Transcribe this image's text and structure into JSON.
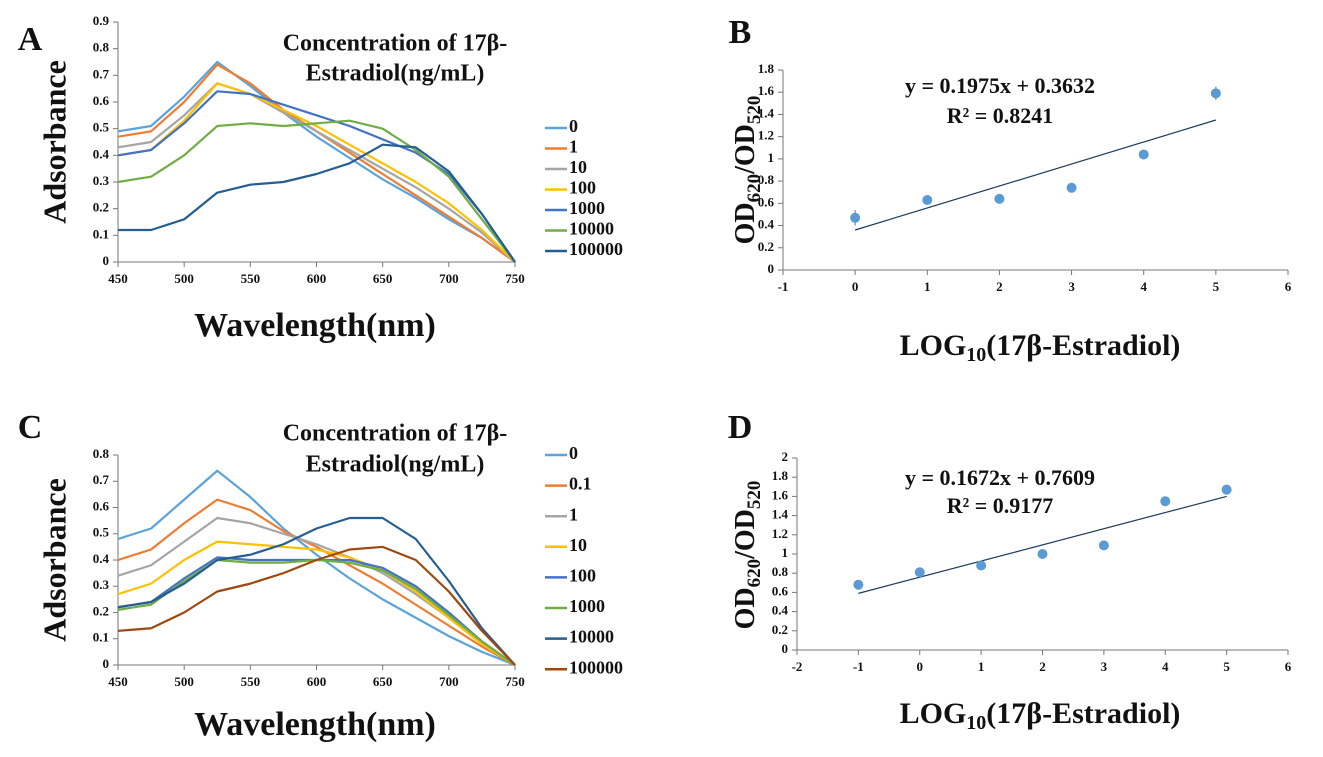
{
  "chart_data": [
    {
      "type": "line",
      "panel_label": "A",
      "legend_title": [
        "Concentration of  17β-",
        "Estradiol(ng/mL)"
      ],
      "xlabel": "Wavelength(nm)",
      "ylabel": "Adsorbance",
      "x": [
        450,
        475,
        500,
        525,
        550,
        575,
        600,
        625,
        650,
        675,
        700,
        725,
        750
      ],
      "xlim": [
        450,
        750
      ],
      "xticks": [
        450,
        500,
        550,
        600,
        650,
        700,
        750
      ],
      "ylim": [
        0,
        0.9
      ],
      "yticks": [
        0,
        0.1,
        0.2,
        0.3,
        0.4,
        0.5,
        0.6,
        0.7,
        0.8,
        0.9
      ],
      "series": [
        {
          "name": "0",
          "color": "#5ba3dc",
          "values": [
            0.49,
            0.51,
            0.62,
            0.75,
            0.66,
            0.56,
            0.47,
            0.39,
            0.31,
            0.24,
            0.16,
            0.09,
            0
          ]
        },
        {
          "name": "1",
          "color": "#ed7d31",
          "values": [
            0.47,
            0.49,
            0.6,
            0.74,
            0.67,
            0.57,
            0.49,
            0.41,
            0.33,
            0.25,
            0.17,
            0.09,
            0
          ]
        },
        {
          "name": "10",
          "color": "#a5a5a5",
          "values": [
            0.43,
            0.45,
            0.55,
            0.67,
            0.63,
            0.56,
            0.49,
            0.42,
            0.35,
            0.28,
            0.2,
            0.11,
            0
          ]
        },
        {
          "name": "100",
          "color": "#ffc000",
          "values": [
            0.4,
            0.42,
            0.53,
            0.67,
            0.63,
            0.57,
            0.51,
            0.44,
            0.37,
            0.3,
            0.22,
            0.12,
            0
          ]
        },
        {
          "name": "1000",
          "color": "#4472c4",
          "values": [
            0.4,
            0.42,
            0.52,
            0.64,
            0.63,
            0.59,
            0.55,
            0.51,
            0.46,
            0.41,
            0.33,
            0.18,
            0
          ]
        },
        {
          "name": "10000",
          "color": "#70ad47",
          "values": [
            0.3,
            0.32,
            0.4,
            0.51,
            0.52,
            0.51,
            0.52,
            0.53,
            0.5,
            0.42,
            0.32,
            0.16,
            0
          ]
        },
        {
          "name": "100000",
          "color": "#255e91",
          "values": [
            0.12,
            0.12,
            0.16,
            0.26,
            0.29,
            0.3,
            0.33,
            0.37,
            0.44,
            0.43,
            0.34,
            0.18,
            0
          ]
        }
      ]
    },
    {
      "type": "scatter",
      "panel_label": "B",
      "equation": [
        "y = 0.1975x + 0.3632",
        "R² = 0.8241"
      ],
      "xlabel_parts": [
        "LOG",
        "10",
        "(17β-Estradiol)"
      ],
      "ylabel_parts": [
        "OD",
        "620",
        "/OD",
        "520"
      ],
      "x": [
        0,
        1,
        2,
        3,
        4,
        5
      ],
      "values": [
        0.47,
        0.63,
        0.64,
        0.74,
        1.04,
        1.59
      ],
      "errors": [
        0.07,
        0.04,
        0.03,
        0.04,
        0.03,
        0.06
      ],
      "color": "#5b9bd5",
      "trendline": {
        "x": [
          0,
          5
        ],
        "values": [
          0.36,
          1.35
        ]
      },
      "xlim": [
        -1,
        6
      ],
      "xticks": [
        -1,
        0,
        1,
        2,
        3,
        4,
        5,
        6
      ],
      "ylim": [
        0,
        1.8
      ],
      "yticks": [
        0,
        0.2,
        0.4,
        0.6,
        0.8,
        1,
        1.2,
        1.4,
        1.6,
        1.8
      ]
    },
    {
      "type": "line",
      "panel_label": "C",
      "legend_title": [
        "Concentration of  17β-",
        "Estradiol(ng/mL)"
      ],
      "xlabel": "Wavelength(nm)",
      "ylabel": "Adsorbance",
      "x": [
        450,
        475,
        500,
        525,
        550,
        575,
        600,
        625,
        650,
        675,
        700,
        725,
        750
      ],
      "xlim": [
        450,
        750
      ],
      "xticks": [
        450,
        500,
        550,
        600,
        650,
        700,
        750
      ],
      "ylim": [
        0,
        0.8
      ],
      "yticks": [
        0,
        0.1,
        0.2,
        0.3,
        0.4,
        0.5,
        0.6,
        0.7,
        0.8
      ],
      "series": [
        {
          "name": "0",
          "color": "#5ba3dc",
          "values": [
            0.48,
            0.52,
            0.63,
            0.74,
            0.64,
            0.52,
            0.42,
            0.33,
            0.25,
            0.18,
            0.11,
            0.05,
            0
          ]
        },
        {
          "name": "0.1",
          "color": "#ed7d31",
          "values": [
            0.4,
            0.44,
            0.54,
            0.63,
            0.59,
            0.51,
            0.45,
            0.38,
            0.31,
            0.23,
            0.15,
            0.07,
            0
          ]
        },
        {
          "name": "1",
          "color": "#a5a5a5",
          "values": [
            0.34,
            0.38,
            0.47,
            0.56,
            0.54,
            0.5,
            0.46,
            0.41,
            0.35,
            0.27,
            0.18,
            0.08,
            0
          ]
        },
        {
          "name": "10",
          "color": "#ffc000",
          "values": [
            0.27,
            0.31,
            0.4,
            0.47,
            0.46,
            0.45,
            0.44,
            0.41,
            0.36,
            0.28,
            0.18,
            0.08,
            0
          ]
        },
        {
          "name": "100",
          "color": "#4472c4",
          "values": [
            0.22,
            0.24,
            0.33,
            0.41,
            0.4,
            0.4,
            0.4,
            0.4,
            0.37,
            0.3,
            0.2,
            0.09,
            0
          ]
        },
        {
          "name": "1000",
          "color": "#70ad47",
          "values": [
            0.21,
            0.23,
            0.32,
            0.4,
            0.39,
            0.39,
            0.4,
            0.39,
            0.36,
            0.29,
            0.19,
            0.09,
            0
          ]
        },
        {
          "name": "10000",
          "color": "#255e91",
          "values": [
            0.22,
            0.24,
            0.31,
            0.4,
            0.42,
            0.46,
            0.52,
            0.56,
            0.56,
            0.48,
            0.32,
            0.14,
            0
          ]
        },
        {
          "name": "100000",
          "color": "#9e480e",
          "values": [
            0.13,
            0.14,
            0.2,
            0.28,
            0.31,
            0.35,
            0.4,
            0.44,
            0.45,
            0.4,
            0.28,
            0.13,
            0
          ]
        }
      ]
    },
    {
      "type": "scatter",
      "panel_label": "D",
      "equation": [
        "y = 0.1672x + 0.7609",
        "R² = 0.9177"
      ],
      "xlabel_parts": [
        "LOG",
        "10",
        "(17β-Estradiol)"
      ],
      "ylabel_parts": [
        "OD",
        "620",
        "/OD",
        "520"
      ],
      "x": [
        -1,
        0,
        1,
        2,
        3,
        4,
        5
      ],
      "values": [
        0.68,
        0.81,
        0.88,
        1,
        1.09,
        1.55,
        1.67
      ],
      "errors": [
        0.05,
        0.04,
        0.04,
        0.05,
        0.03,
        0.04,
        0.05
      ],
      "color": "#5b9bd5",
      "trendline": {
        "x": [
          -1,
          5
        ],
        "values": [
          0.59,
          1.6
        ]
      },
      "xlim": [
        -2,
        6
      ],
      "xticks": [
        -2,
        -1,
        0,
        1,
        2,
        3,
        4,
        5,
        6
      ],
      "ylim": [
        0,
        2
      ],
      "yticks": [
        0,
        0.2,
        0.4,
        0.6,
        0.8,
        1,
        1.2,
        1.4,
        1.6,
        1.8,
        2
      ]
    }
  ]
}
